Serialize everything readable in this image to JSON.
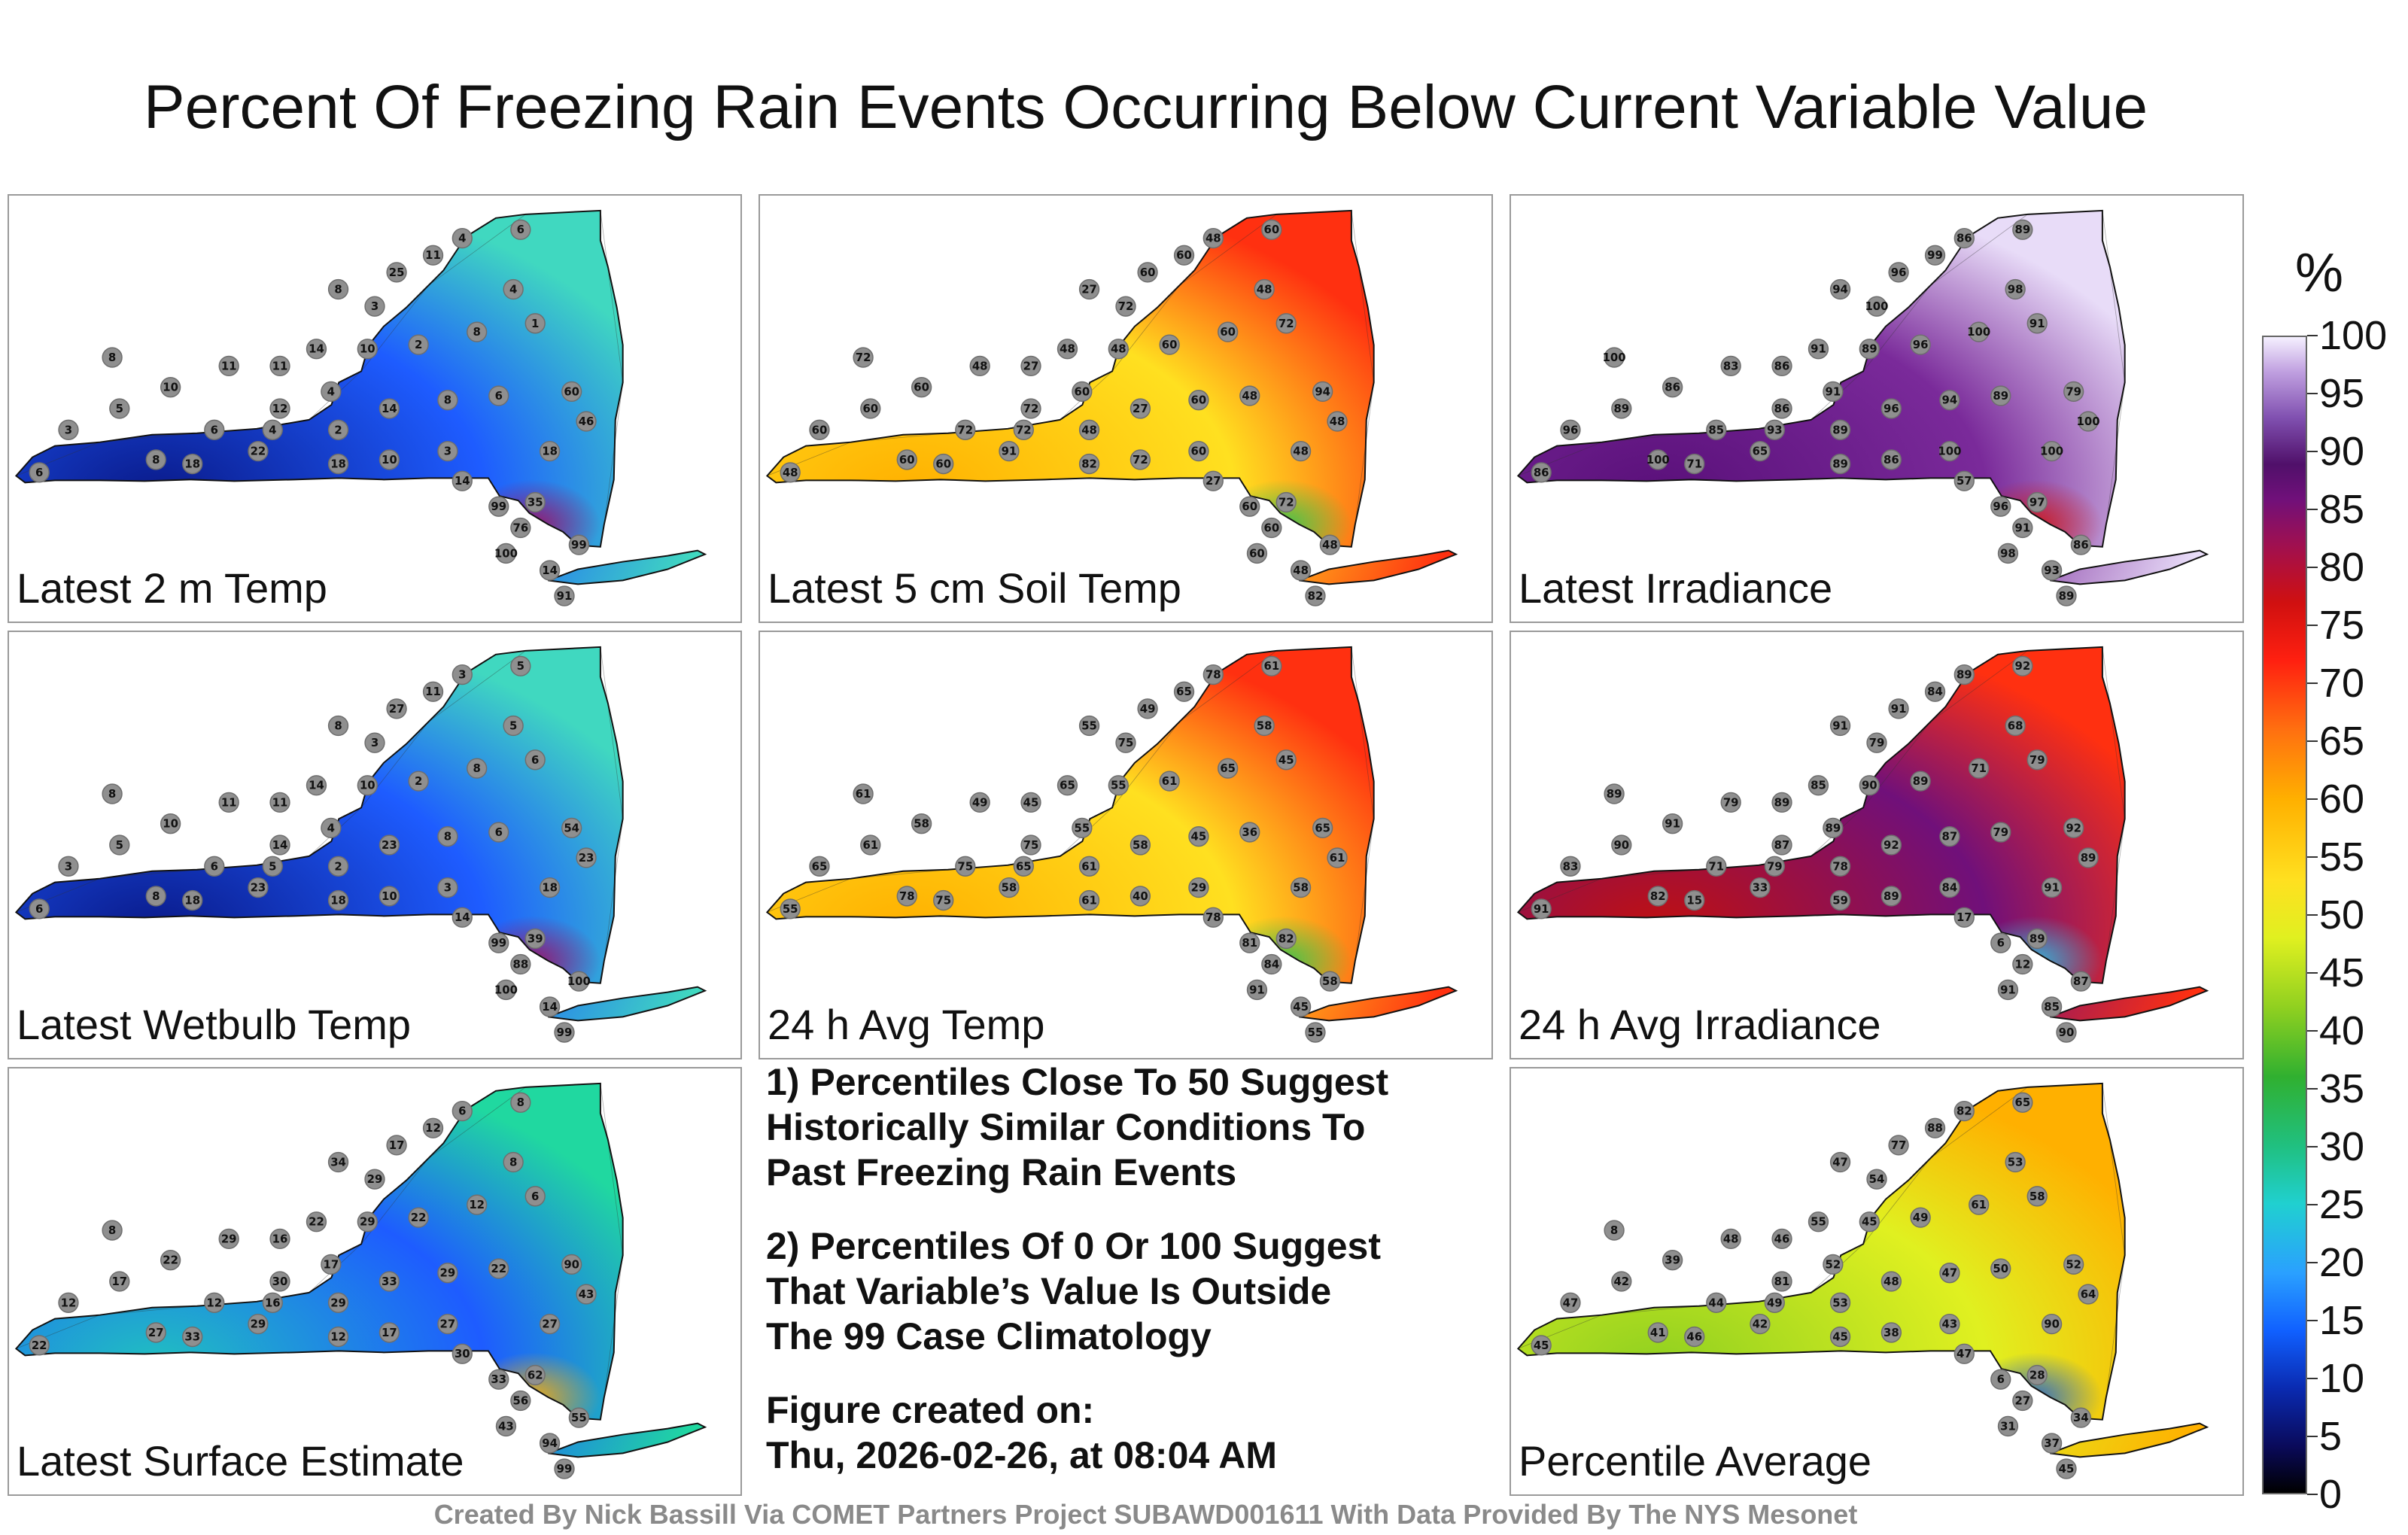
{
  "title": "Percent Of Freezing Rain Events Occurring Below Current Variable Value",
  "panels": [
    {
      "id": "p1",
      "label": "Latest 2 m Temp",
      "low": "#0a1a8a",
      "mid": "#1e5cff",
      "high": "#40d8c0",
      "accent": "#a01060",
      "values": [
        6,
        8,
        3,
        5,
        10,
        11,
        11,
        14,
        8,
        6,
        4,
        2,
        4,
        14,
        8,
        6,
        3,
        10,
        18,
        22,
        18,
        14,
        99,
        76,
        35,
        100,
        99,
        14,
        91,
        60,
        46,
        8,
        3,
        25,
        11,
        4,
        6,
        1,
        4,
        8,
        2,
        10,
        12,
        18
      ]
    },
    {
      "id": "p2",
      "label": "Latest 5 cm Soil Temp",
      "low": "#ffb000",
      "mid": "#ffe020",
      "high": "#ff3010",
      "accent": "#30c050",
      "values": [
        48,
        72,
        60,
        60,
        60,
        48,
        27,
        48,
        60,
        72,
        72,
        48,
        60,
        27,
        60,
        48,
        60,
        72,
        82,
        91,
        60,
        27,
        60,
        60,
        72,
        60,
        48,
        48,
        82,
        94,
        48,
        27,
        72,
        60,
        60,
        48,
        60,
        72,
        48,
        60,
        60,
        48,
        72,
        48
      ]
    },
    {
      "id": "p3",
      "label": "Latest Irradiance",
      "low": "#5a107a",
      "mid": "#7a2a9a",
      "high": "#e8dcf8",
      "accent": "#d01818",
      "values": [
        86,
        100,
        96,
        89,
        86,
        83,
        86,
        91,
        100,
        85,
        93,
        89,
        91,
        96,
        94,
        89,
        100,
        86,
        89,
        65,
        71,
        57,
        96,
        91,
        97,
        98,
        86,
        93,
        89,
        79,
        100,
        94,
        100,
        96,
        99,
        86,
        89,
        91,
        98,
        100,
        96,
        89,
        86,
        100
      ]
    },
    {
      "id": "p4",
      "label": "Latest Wetbulb Temp",
      "low": "#0a1a8a",
      "mid": "#1e5cff",
      "high": "#40d8c0",
      "accent": "#a01060",
      "values": [
        6,
        8,
        3,
        5,
        10,
        11,
        11,
        14,
        8,
        6,
        5,
        2,
        4,
        23,
        8,
        6,
        3,
        10,
        18,
        23,
        18,
        14,
        99,
        88,
        39,
        100,
        100,
        14,
        99,
        54,
        23,
        8,
        3,
        27,
        11,
        3,
        5,
        6,
        5,
        8,
        2,
        10,
        14,
        18
      ]
    },
    {
      "id": "p5",
      "label": "24 h Avg Temp",
      "low": "#ffb000",
      "mid": "#ffe020",
      "high": "#ff3010",
      "accent": "#30c050",
      "values": [
        55,
        61,
        65,
        61,
        58,
        49,
        45,
        65,
        78,
        75,
        65,
        61,
        55,
        58,
        45,
        36,
        29,
        40,
        61,
        58,
        75,
        78,
        81,
        84,
        82,
        91,
        58,
        45,
        55,
        65,
        61,
        55,
        75,
        49,
        65,
        78,
        61,
        45,
        58,
        65,
        61,
        55,
        75,
        58
      ]
    },
    {
      "id": "p6",
      "label": "24 h Avg Irradiance",
      "low": "#c01010",
      "mid": "#70107a",
      "high": "#ff3010",
      "accent": "#30c0e0",
      "values": [
        91,
        89,
        83,
        90,
        91,
        79,
        89,
        85,
        82,
        71,
        79,
        78,
        89,
        92,
        87,
        79,
        84,
        89,
        59,
        33,
        15,
        17,
        6,
        12,
        89,
        91,
        87,
        85,
        90,
        92,
        89,
        91,
        79,
        91,
        84,
        89,
        92,
        79,
        68,
        71,
        89,
        90,
        87,
        91
      ]
    },
    {
      "id": "p7",
      "label": "Latest Surface Estimate",
      "low": "#20c0c0",
      "mid": "#1e5cff",
      "high": "#20d8a0",
      "accent": "#ffb000",
      "values": [
        22,
        8,
        12,
        17,
        22,
        29,
        16,
        22,
        27,
        12,
        16,
        29,
        17,
        33,
        29,
        22,
        27,
        17,
        12,
        29,
        33,
        30,
        33,
        56,
        62,
        43,
        55,
        94,
        99,
        90,
        43,
        34,
        29,
        17,
        12,
        6,
        8,
        6,
        8,
        12,
        22,
        29,
        30,
        27
      ]
    },
    {
      "id": "p8",
      "label": "Percentile Average",
      "low": "#90d020",
      "mid": "#e0f020",
      "high": "#ffb000",
      "accent": "#2060d0",
      "values": [
        45,
        8,
        47,
        42,
        39,
        48,
        46,
        55,
        41,
        44,
        49,
        53,
        52,
        48,
        47,
        50,
        43,
        38,
        45,
        42,
        46,
        47,
        6,
        27,
        28,
        31,
        34,
        37,
        45,
        52,
        64,
        47,
        54,
        77,
        88,
        82,
        65,
        58,
        53,
        61,
        49,
        45,
        81,
        90
      ]
    }
  ],
  "notes": [
    "1) Percentiles Close To 50 Suggest\nHistorically Similar Conditions To\nPast Freezing Rain Events",
    "2) Percentiles Of 0 Or 100 Suggest\nThat Variable’s Value Is Outside\nThe 99 Case Climatology",
    "Figure created on:\nThu, 2026-02-26, at 08:04 AM"
  ],
  "colorbar": {
    "unit": "%",
    "ticks": [
      "0",
      "5",
      "10",
      "15",
      "20",
      "25",
      "30",
      "35",
      "40",
      "45",
      "50",
      "55",
      "60",
      "65",
      "70",
      "75",
      "80",
      "85",
      "90",
      "95",
      "100"
    ]
  },
  "credit": "Created By Nick Bassill Via COMET Partners Project SUBAWD001611 With Data Provided By The NYS Mesonet"
}
